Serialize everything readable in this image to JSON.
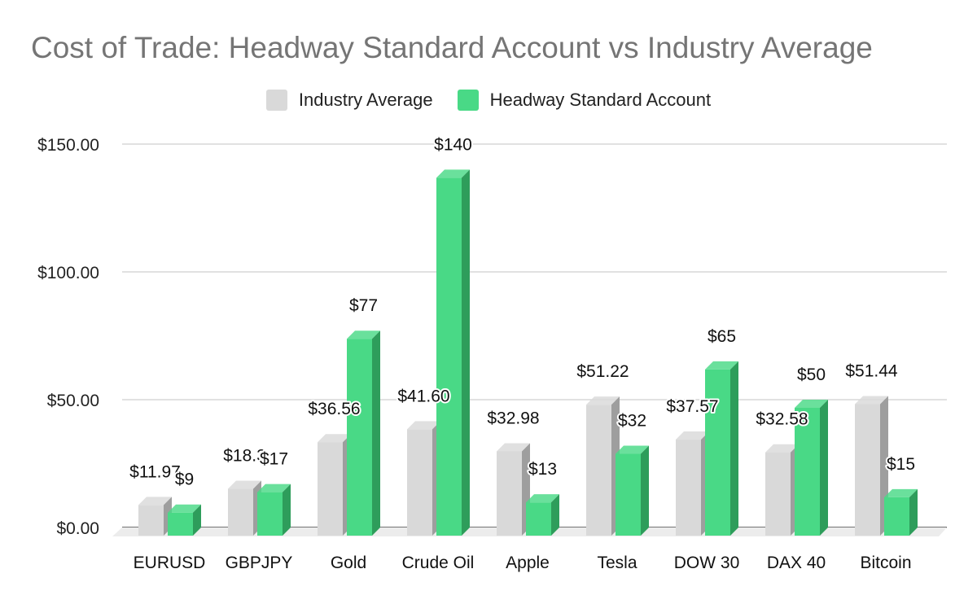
{
  "chart_data": {
    "type": "bar",
    "title": "Cost of Trade: Headway Standard Account vs Industry Average",
    "categories": [
      "EURUSD",
      "GBPJPY",
      "Gold",
      "Crude Oil",
      "Apple",
      "Tesla",
      "DOW 30",
      "DAX 40",
      "Bitcoin"
    ],
    "series": [
      {
        "name": "Industry Average",
        "color": "#d9d9d9",
        "side_color": "#9e9e9e",
        "values": [
          11.97,
          18.3,
          36.56,
          41.6,
          32.98,
          51.22,
          37.57,
          32.58,
          51.44
        ],
        "labels": [
          "$11.97",
          "$18.3",
          "$36.56",
          "$41.60",
          "$32.98",
          "$51.22",
          "$37.57",
          "$32.58",
          "$51.44"
        ]
      },
      {
        "name": "Headway Standard Account",
        "color": "#49d986",
        "side_color": "#2e9d5b",
        "values": [
          9,
          17,
          77,
          140,
          13,
          32,
          65,
          50,
          15
        ],
        "labels": [
          "$9",
          "$17",
          "$77",
          "$140",
          "$13",
          "$32",
          "$65",
          "$50",
          "$15"
        ]
      }
    ],
    "y_ticks": [
      "$0.00",
      "$50.00",
      "$100.00",
      "$150.00"
    ],
    "y_tick_values": [
      0,
      50,
      100,
      150
    ],
    "ylim": [
      0,
      150
    ],
    "xlabel": "",
    "ylabel": "",
    "grid": true,
    "legend_position": "top-center",
    "style": "3d-column"
  }
}
